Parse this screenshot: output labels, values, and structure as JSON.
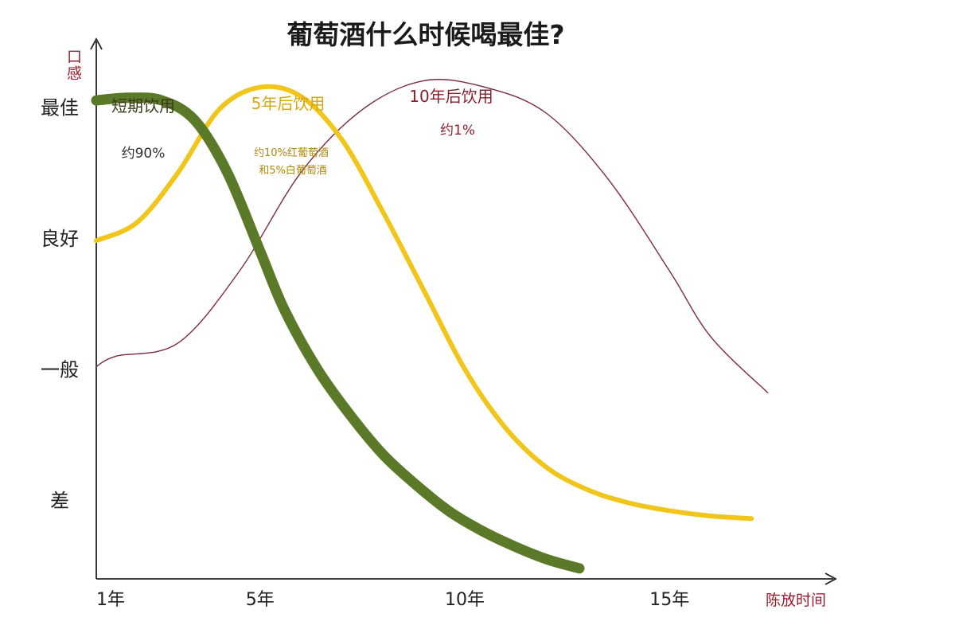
{
  "chart_data": {
    "type": "line",
    "title": "葡萄酒什么时候喝最佳?",
    "ylabel": "口感",
    "xlabel": "陈放时间",
    "x_ticks": [
      {
        "value": 1,
        "label": "1年"
      },
      {
        "value": 5,
        "label": "5年"
      },
      {
        "value": 10,
        "label": "10年"
      },
      {
        "value": 15,
        "label": "15年"
      }
    ],
    "y_ticks": [
      {
        "value": 4,
        "label": "最佳"
      },
      {
        "value": 3,
        "label": "良好"
      },
      {
        "value": 2,
        "label": "一般"
      },
      {
        "value": 1,
        "label": "差"
      }
    ],
    "xlim": [
      1,
      19
    ],
    "ylim": [
      0.4,
      4.5
    ],
    "grid": false,
    "series": [
      {
        "name": "短期饮用",
        "share": "约90%",
        "color": "#5b7a29",
        "x": [
          1,
          1.8,
          2.6,
          3.4,
          4.2,
          5.0,
          5.6,
          6.4,
          7.2,
          8.0,
          8.8,
          9.6,
          10.4,
          11.2,
          12.0,
          12.8
        ],
        "y": [
          4.05,
          4.07,
          4.05,
          3.9,
          3.5,
          2.9,
          2.45,
          2.0,
          1.65,
          1.35,
          1.12,
          0.92,
          0.77,
          0.65,
          0.55,
          0.48
        ]
      },
      {
        "name": "5年后饮用",
        "share": "约10%红葡萄酒 和5%白葡萄酒",
        "color": "#f2c51a",
        "x": [
          1,
          2,
          3,
          4,
          5,
          6,
          7,
          8,
          9,
          10,
          11,
          12,
          13,
          14,
          15,
          16,
          17
        ],
        "y": [
          2.98,
          3.12,
          3.5,
          3.98,
          4.15,
          4.08,
          3.75,
          3.2,
          2.6,
          2.0,
          1.55,
          1.25,
          1.08,
          0.98,
          0.92,
          0.88,
          0.86
        ]
      },
      {
        "name": "10年后饮用",
        "share": "约1%",
        "color": "#7a2a3a",
        "x": [
          1,
          1.5,
          3,
          4.5,
          6,
          7.5,
          9,
          10.5,
          12,
          13.5,
          15,
          16,
          17.4
        ],
        "y": [
          2.02,
          2.1,
          2.2,
          2.75,
          3.5,
          3.98,
          4.2,
          4.15,
          3.95,
          3.45,
          2.75,
          2.25,
          1.82
        ]
      }
    ],
    "legend": "none"
  }
}
